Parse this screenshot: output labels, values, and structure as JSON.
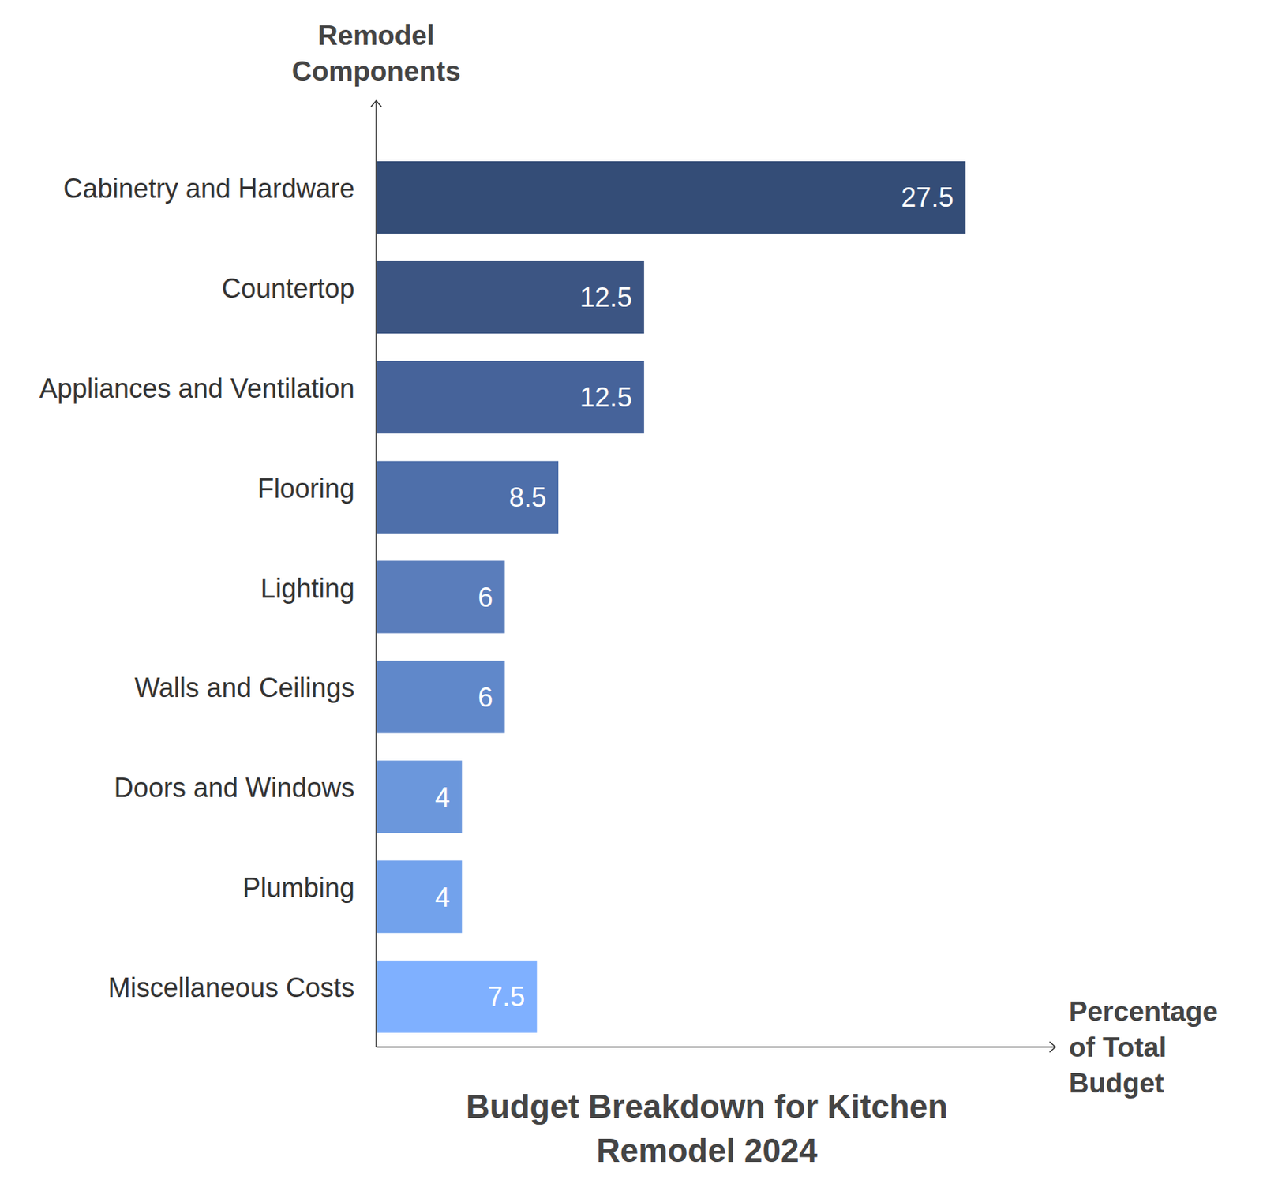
{
  "chart_data": {
    "type": "bar",
    "orientation": "horizontal",
    "title": "Budget Breakdown for Kitchen Remodel 2024",
    "x_label": "Percentage of Total Budget",
    "y_label": "Remodel Components",
    "categories": [
      "Cabinetry and Hardware",
      "Countertop",
      "Appliances and Ventilation",
      "Flooring",
      "Lighting",
      "Walls and Ceilings",
      "Doors and Windows",
      "Plumbing",
      "Miscellaneous Costs"
    ],
    "values": [
      27.5,
      12.5,
      12.5,
      8.5,
      6,
      6,
      4,
      4,
      7.5
    ],
    "colors": [
      "#344d77",
      "#3c5583",
      "#46639a",
      "#4e6faa",
      "#5a7dbb",
      "#6088ca",
      "#6b97dc",
      "#72a2ec",
      "#7fb0ff"
    ],
    "xlim": [
      0,
      31.7
    ],
    "data_labels": true,
    "tick_labels": "y",
    "grid": false
  }
}
